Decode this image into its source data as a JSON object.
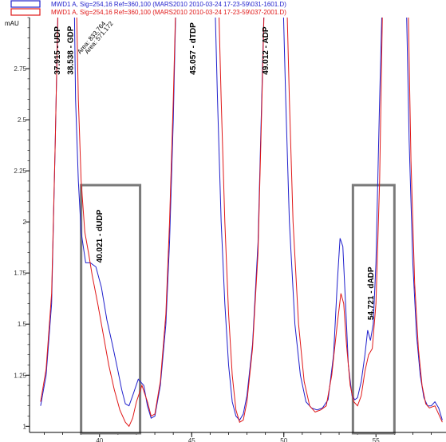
{
  "chart_data": {
    "type": "line",
    "ylabel": "mAU",
    "xlim": [
      36.2,
      58.8
    ],
    "ylim": [
      0.97,
      3.0
    ],
    "x_ticks": [
      {
        "value": 40,
        "label": "40"
      },
      {
        "value": 45,
        "label": "45"
      },
      {
        "value": 50,
        "label": "50"
      },
      {
        "value": 55,
        "label": "55"
      }
    ],
    "y_ticks": [
      {
        "value": 1,
        "label": "1"
      },
      {
        "value": 1.25,
        "label": "1.25"
      },
      {
        "value": 1.5,
        "label": "1.5"
      },
      {
        "value": 1.75,
        "label": "1.75"
      },
      {
        "value": 2,
        "label": "2"
      },
      {
        "value": 2.25,
        "label": "2.25"
      },
      {
        "value": 2.5,
        "label": "2.5"
      },
      {
        "value": 2.75,
        "label": "2.75"
      }
    ],
    "legend_position": "top-left",
    "series": [
      {
        "name": "MWD1 A, Sig=254,16 Ref=360,100 (MARS2010 2010-03-24 17-23-59\\031-1601.D)",
        "color": "#1f1fcc",
        "points": [
          [
            36.8,
            1.1
          ],
          [
            37.1,
            1.25
          ],
          [
            37.4,
            1.6
          ],
          [
            37.6,
            2.4
          ],
          [
            37.8,
            3.3
          ],
          [
            38.6,
            3.3
          ],
          [
            38.7,
            2.6
          ],
          [
            38.85,
            2.2
          ],
          [
            39.0,
            1.95
          ],
          [
            39.25,
            1.8
          ],
          [
            39.5,
            1.8
          ],
          [
            39.8,
            1.78
          ],
          [
            40.1,
            1.68
          ],
          [
            40.4,
            1.52
          ],
          [
            40.7,
            1.4
          ],
          [
            41.0,
            1.27
          ],
          [
            41.2,
            1.18
          ],
          [
            41.4,
            1.11
          ],
          [
            41.6,
            1.1
          ],
          [
            41.8,
            1.15
          ],
          [
            42.1,
            1.23
          ],
          [
            42.4,
            1.2
          ],
          [
            42.6,
            1.1
          ],
          [
            42.8,
            1.04
          ],
          [
            43.0,
            1.05
          ],
          [
            43.3,
            1.2
          ],
          [
            43.6,
            1.5
          ],
          [
            43.8,
            1.9
          ],
          [
            44.0,
            2.5
          ],
          [
            44.2,
            3.3
          ],
          [
            46.2,
            3.3
          ],
          [
            46.4,
            2.6
          ],
          [
            46.6,
            2.0
          ],
          [
            46.8,
            1.6
          ],
          [
            47.0,
            1.3
          ],
          [
            47.2,
            1.12
          ],
          [
            47.4,
            1.05
          ],
          [
            47.6,
            1.03
          ],
          [
            47.8,
            1.06
          ],
          [
            48.0,
            1.15
          ],
          [
            48.3,
            1.4
          ],
          [
            48.6,
            1.9
          ],
          [
            48.8,
            2.6
          ],
          [
            49.0,
            3.3
          ],
          [
            49.9,
            3.3
          ],
          [
            50.1,
            2.6
          ],
          [
            50.3,
            2.0
          ],
          [
            50.6,
            1.5
          ],
          [
            50.9,
            1.25
          ],
          [
            51.2,
            1.12
          ],
          [
            51.5,
            1.09
          ],
          [
            51.8,
            1.08
          ],
          [
            52.1,
            1.09
          ],
          [
            52.4,
            1.13
          ],
          [
            52.7,
            1.35
          ],
          [
            52.9,
            1.7
          ],
          [
            53.05,
            1.92
          ],
          [
            53.2,
            1.88
          ],
          [
            53.35,
            1.6
          ],
          [
            53.5,
            1.3
          ],
          [
            53.7,
            1.15
          ],
          [
            53.85,
            1.13
          ],
          [
            54.0,
            1.14
          ],
          [
            54.2,
            1.22
          ],
          [
            54.4,
            1.35
          ],
          [
            54.55,
            1.47
          ],
          [
            54.7,
            1.42
          ],
          [
            54.85,
            1.5
          ],
          [
            55.0,
            1.8
          ],
          [
            55.2,
            2.6
          ],
          [
            55.4,
            3.3
          ],
          [
            56.6,
            3.3
          ],
          [
            56.8,
            2.4
          ],
          [
            57.0,
            1.8
          ],
          [
            57.2,
            1.45
          ],
          [
            57.4,
            1.25
          ],
          [
            57.6,
            1.14
          ],
          [
            57.8,
            1.1
          ],
          [
            58.0,
            1.1
          ],
          [
            58.2,
            1.12
          ],
          [
            58.4,
            1.09
          ],
          [
            58.6,
            1.03
          ]
        ]
      },
      {
        "name": "MWD1 A, Sig=254,16 Ref=360,100 (MARS2010 2010-03-24 17-23-59\\037-2001.D)",
        "color": "#e01818",
        "points": [
          [
            36.8,
            1.12
          ],
          [
            37.1,
            1.28
          ],
          [
            37.4,
            1.65
          ],
          [
            37.6,
            2.4
          ],
          [
            37.8,
            3.3
          ],
          [
            38.7,
            3.3
          ],
          [
            38.85,
            2.6
          ],
          [
            39.0,
            2.2
          ],
          [
            39.2,
            1.95
          ],
          [
            39.4,
            1.85
          ],
          [
            39.6,
            1.74
          ],
          [
            39.9,
            1.6
          ],
          [
            40.2,
            1.45
          ],
          [
            40.5,
            1.3
          ],
          [
            40.8,
            1.18
          ],
          [
            41.1,
            1.08
          ],
          [
            41.4,
            1.02
          ],
          [
            41.6,
            1.0
          ],
          [
            41.8,
            1.04
          ],
          [
            42.0,
            1.12
          ],
          [
            42.3,
            1.2
          ],
          [
            42.6,
            1.12
          ],
          [
            42.8,
            1.05
          ],
          [
            43.0,
            1.06
          ],
          [
            43.3,
            1.22
          ],
          [
            43.6,
            1.55
          ],
          [
            43.8,
            2.0
          ],
          [
            44.0,
            2.6
          ],
          [
            44.2,
            3.3
          ],
          [
            46.4,
            3.3
          ],
          [
            46.6,
            2.6
          ],
          [
            46.8,
            2.0
          ],
          [
            47.0,
            1.55
          ],
          [
            47.2,
            1.25
          ],
          [
            47.4,
            1.08
          ],
          [
            47.6,
            1.02
          ],
          [
            47.8,
            1.03
          ],
          [
            48.0,
            1.12
          ],
          [
            48.3,
            1.38
          ],
          [
            48.6,
            1.85
          ],
          [
            48.8,
            2.55
          ],
          [
            49.0,
            3.3
          ],
          [
            50.1,
            3.3
          ],
          [
            50.3,
            2.6
          ],
          [
            50.5,
            2.0
          ],
          [
            50.8,
            1.5
          ],
          [
            51.1,
            1.22
          ],
          [
            51.4,
            1.1
          ],
          [
            51.7,
            1.07
          ],
          [
            52.0,
            1.08
          ],
          [
            52.3,
            1.1
          ],
          [
            52.6,
            1.25
          ],
          [
            52.9,
            1.5
          ],
          [
            53.1,
            1.65
          ],
          [
            53.25,
            1.6
          ],
          [
            53.4,
            1.4
          ],
          [
            53.6,
            1.2
          ],
          [
            53.8,
            1.12
          ],
          [
            54.0,
            1.1
          ],
          [
            54.2,
            1.15
          ],
          [
            54.4,
            1.27
          ],
          [
            54.6,
            1.35
          ],
          [
            54.8,
            1.38
          ],
          [
            55.0,
            1.6
          ],
          [
            55.2,
            2.2
          ],
          [
            55.4,
            3.3
          ],
          [
            56.7,
            3.3
          ],
          [
            56.9,
            2.3
          ],
          [
            57.1,
            1.7
          ],
          [
            57.3,
            1.38
          ],
          [
            57.5,
            1.2
          ],
          [
            57.7,
            1.11
          ],
          [
            57.9,
            1.09
          ],
          [
            58.2,
            1.1
          ],
          [
            58.6,
            1.02
          ]
        ]
      }
    ],
    "annotations": [
      {
        "text": "37.915 - UDP",
        "x": 37.85,
        "y": 2.72
      },
      {
        "text": "38.538 - GDP",
        "x": 38.55,
        "y": 2.72
      },
      {
        "text": "Area: 833.764",
        "x": 38.95,
        "y": 2.82
      },
      {
        "text": "Area: 571.172",
        "x": 39.35,
        "y": 2.82
      },
      {
        "text": "40.021 - dUDP",
        "x": 40.15,
        "y": 1.8
      },
      {
        "text": "45.057 - dTDP",
        "x": 45.2,
        "y": 2.72
      },
      {
        "text": "49.012 - ADP",
        "x": 49.15,
        "y": 2.72
      },
      {
        "text": "54.721 - dADP",
        "x": 54.85,
        "y": 1.52
      }
    ],
    "highlight_boxes": [
      {
        "x0": 39.0,
        "x1": 42.2,
        "y0": 0.966,
        "y1": 2.18
      },
      {
        "x0": 53.75,
        "x1": 56.0,
        "y0": 0.966,
        "y1": 2.18
      }
    ]
  }
}
